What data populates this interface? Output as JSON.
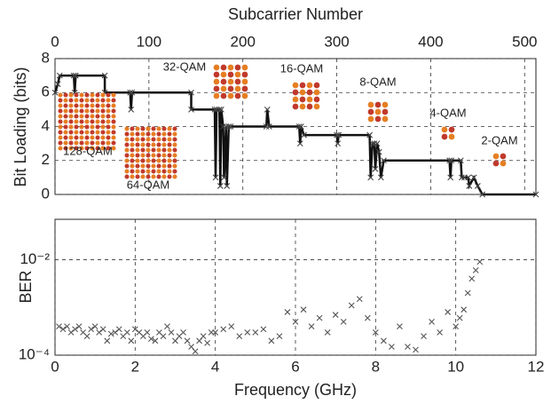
{
  "chart_data": [
    {
      "type": "line",
      "title": "Subcarrier Number",
      "ylabel": "Bit Loading (bits)",
      "x": [
        0,
        3,
        5,
        20,
        21,
        22,
        53,
        53,
        80,
        81,
        82,
        145,
        145,
        170,
        171,
        172,
        175,
        176,
        177,
        179,
        180,
        182,
        183,
        185,
        187,
        225,
        226,
        228,
        260,
        261,
        262,
        265,
        300,
        301,
        302,
        335,
        336,
        338,
        340,
        341,
        343,
        345,
        347,
        350,
        420,
        421,
        422,
        432,
        433,
        436,
        440,
        441,
        446,
        450,
        455,
        512
      ],
      "values": [
        6,
        6.5,
        7,
        7,
        6,
        7,
        7,
        6,
        6,
        5,
        6,
        6,
        5,
        5,
        1,
        5,
        5,
        0.5,
        5,
        4,
        1,
        4,
        0.5,
        4,
        4,
        4,
        5,
        4,
        4,
        3,
        4,
        3.5,
        3.5,
        3,
        3.5,
        3.5,
        1,
        3,
        3,
        1.5,
        3,
        2.5,
        1,
        2,
        2,
        1,
        2,
        2,
        1,
        1,
        1,
        0.5,
        1,
        0.5,
        0,
        0
      ],
      "color": "#111",
      "xlim": [
        0,
        512
      ],
      "xticks": [
        0,
        100,
        200,
        300,
        400,
        500
      ],
      "ylim": [
        0,
        8
      ],
      "yticks": [
        0,
        2,
        4,
        6,
        8
      ],
      "grid": true,
      "annotations": [
        "128-QAM",
        "64-QAM",
        "32-QAM",
        "16-QAM",
        "8-QAM",
        "4-QAM",
        "2-QAM"
      ]
    },
    {
      "type": "scatter",
      "xlabel": "Frequency (GHz)",
      "ylabel": "BER",
      "log_y": true,
      "color": "#555",
      "x": [
        0.1,
        0.2,
        0.3,
        0.4,
        0.5,
        0.6,
        0.7,
        0.8,
        0.9,
        1.0,
        1.1,
        1.2,
        1.3,
        1.4,
        1.5,
        1.6,
        1.7,
        1.8,
        1.9,
        2.0,
        2.1,
        2.2,
        2.3,
        2.4,
        2.5,
        2.6,
        2.7,
        2.8,
        2.9,
        3.0,
        3.1,
        3.2,
        3.3,
        3.4,
        3.5,
        3.6,
        3.7,
        3.8,
        3.9,
        4.0,
        4.2,
        4.4,
        4.6,
        4.8,
        5.0,
        5.2,
        5.4,
        5.6,
        5.8,
        6.0,
        6.2,
        6.4,
        6.6,
        6.8,
        7.0,
        7.2,
        7.4,
        7.6,
        7.8,
        8.0,
        8.2,
        8.4,
        8.6,
        8.8,
        9.0,
        9.2,
        9.4,
        9.6,
        9.8,
        10.0,
        10.1,
        10.2,
        10.3,
        10.4,
        10.5,
        10.6
      ],
      "values": [
        0.0004,
        0.00035,
        0.0004,
        0.0003,
        0.00035,
        0.0004,
        0.0003,
        0.00025,
        0.00035,
        0.0004,
        0.0003,
        0.00035,
        0.0002,
        0.00028,
        0.0003,
        0.00035,
        0.00025,
        0.0003,
        0.0002,
        0.00035,
        0.0003,
        0.00025,
        0.0003,
        0.00022,
        0.0002,
        0.0003,
        0.00025,
        0.0004,
        0.0003,
        0.0002,
        0.00025,
        0.0003,
        0.0002,
        0.00015,
        0.00012,
        0.0002,
        0.00025,
        0.00018,
        0.0003,
        0.0003,
        0.00035,
        0.0004,
        0.00025,
        0.0003,
        0.0003,
        0.00035,
        0.0002,
        0.00025,
        0.0008,
        0.0005,
        0.0009,
        0.0004,
        0.0006,
        0.0003,
        0.0007,
        0.0005,
        0.0011,
        0.0015,
        0.0006,
        0.0003,
        0.0002,
        0.00015,
        0.0004,
        0.00015,
        0.00013,
        0.00025,
        0.0005,
        0.0003,
        0.0008,
        0.0004,
        0.0006,
        0.0009,
        0.002,
        0.004,
        0.006,
        0.009
      ],
      "xlim": [
        0,
        12
      ],
      "xticks": [
        0,
        2,
        4,
        6,
        8,
        10,
        12
      ],
      "ylim": [
        0.0001,
        0.07
      ],
      "yticks": [
        {
          "value": 0.0001,
          "label": "10⁻⁴"
        },
        {
          "value": 0.01,
          "label": "10⁻²"
        }
      ],
      "grid": true
    }
  ]
}
